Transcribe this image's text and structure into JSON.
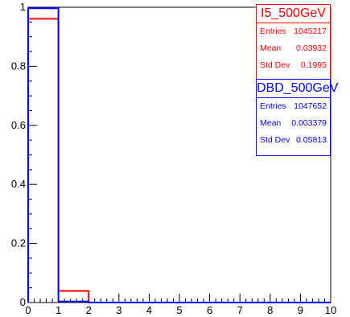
{
  "chart_data": {
    "type": "histogram",
    "xlim": [
      0,
      10
    ],
    "ylim": [
      0,
      1.0
    ],
    "x_ticks": [
      "0",
      "1",
      "2",
      "3",
      "4",
      "5",
      "6",
      "7",
      "8",
      "9",
      "10"
    ],
    "y_ticks": [
      "0",
      "0.2",
      "0.4",
      "0.6",
      "0.8",
      "1"
    ],
    "series": [
      {
        "name": "I5_500GeV",
        "color": "#ff0000",
        "bin_edges": [
          0,
          1,
          2,
          3,
          4,
          5,
          6,
          7,
          8,
          9,
          10
        ],
        "values": [
          0.961,
          0.039,
          0,
          0,
          0,
          0,
          0,
          0,
          0,
          0
        ]
      },
      {
        "name": "DBD_500GeV",
        "color": "#0000ff",
        "bin_edges": [
          0,
          1,
          2,
          3,
          4,
          5,
          6,
          7,
          8,
          9,
          10
        ],
        "values": [
          0.9966,
          0.0034,
          0,
          0,
          0,
          0,
          0,
          0,
          0,
          0
        ]
      }
    ]
  },
  "stats": [
    {
      "title": "I5_500GeV",
      "rows": [
        [
          "Entries",
          "1045217"
        ],
        [
          "Mean",
          "0.03932"
        ],
        [
          "Std Dev",
          "0.1995"
        ]
      ]
    },
    {
      "title": "DBD_500GeV",
      "rows": [
        [
          "Entries",
          "1047652"
        ],
        [
          "Mean",
          "0.003379"
        ],
        [
          "Std Dev",
          "0.05813"
        ]
      ]
    }
  ]
}
